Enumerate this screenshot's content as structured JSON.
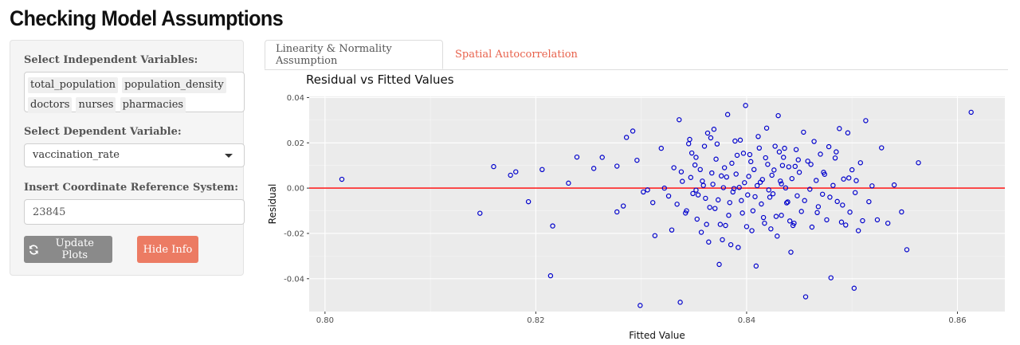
{
  "app": {
    "title": "Checking Model Assumptions"
  },
  "sidebar": {
    "independent_label": "Select Independent Variables:",
    "independent_selected": [
      "total_population",
      "population_density",
      "doctors",
      "nurses",
      "pharmacies"
    ],
    "dependent_label": "Select Dependent Variable:",
    "dependent_value": "vaccination_rate",
    "crs_label": "Insert Coordinate Reference System:",
    "crs_value": "23845",
    "update_button": "Update Plots",
    "update_icon": "refresh-icon",
    "hide_button": "Hide Info"
  },
  "tabs": [
    {
      "label": "Linearity & Normality Assumption",
      "active": true
    },
    {
      "label": "Spatial Autocorrelation",
      "active": false
    }
  ],
  "colors": {
    "accent": "#ec7b63",
    "tab_link": "#e8624c",
    "panel_bg": "#ebebeb",
    "points": "#0000cc",
    "reference_line": "#ff0000",
    "button_gray": "#8a8a8a"
  },
  "chart_data": {
    "type": "scatter",
    "title": "Residual vs Fitted Values",
    "xlabel": "Fitted Value",
    "ylabel": "Residual",
    "xlim": [
      0.7985,
      0.8645
    ],
    "ylim": [
      -0.0545,
      0.0405
    ],
    "xticks": [
      0.8,
      0.82,
      0.84,
      0.86
    ],
    "xtick_labels": [
      "0.80",
      "0.82",
      "0.84",
      "0.86"
    ],
    "yticks": [
      -0.04,
      -0.02,
      0.0,
      0.02,
      0.04
    ],
    "ytick_labels": [
      "-0.04",
      "-0.02",
      "0.00",
      "0.02",
      "0.04"
    ],
    "grid": true,
    "reference_line_y": 0,
    "points": [
      [
        0.8016,
        0.0039
      ],
      [
        0.8147,
        -0.0111
      ],
      [
        0.816,
        0.0095
      ],
      [
        0.8176,
        0.0057
      ],
      [
        0.8181,
        0.0072
      ],
      [
        0.8193,
        -0.006
      ],
      [
        0.8206,
        0.0082
      ],
      [
        0.8214,
        -0.0387
      ],
      [
        0.8216,
        -0.0167
      ],
      [
        0.8231,
        0.0022
      ],
      [
        0.8239,
        0.0137
      ],
      [
        0.8255,
        0.0087
      ],
      [
        0.8263,
        0.0136
      ],
      [
        0.8277,
        -0.0105
      ],
      [
        0.8277,
        0.0097
      ],
      [
        0.8283,
        -0.0079
      ],
      [
        0.8286,
        0.0224
      ],
      [
        0.8292,
        0.0252
      ],
      [
        0.8296,
        0.0123
      ],
      [
        0.8299,
        -0.0518
      ],
      [
        0.8302,
        -0.0017
      ],
      [
        0.8306,
        -0.0008
      ],
      [
        0.8311,
        -0.0064
      ],
      [
        0.8313,
        -0.021
      ],
      [
        0.8319,
        0.0176
      ],
      [
        0.8322,
        0.0
      ],
      [
        0.8326,
        -0.0035
      ],
      [
        0.8329,
        -0.0185
      ],
      [
        0.8331,
        0.009
      ],
      [
        0.8334,
        -0.0071
      ],
      [
        0.8336,
        0.0302
      ],
      [
        0.8337,
        -0.0504
      ],
      [
        0.8339,
        0.003
      ],
      [
        0.8342,
        -0.011
      ],
      [
        0.8345,
        0.0196
      ],
      [
        0.8347,
        0.0047
      ],
      [
        0.8349,
        -0.0024
      ],
      [
        0.8352,
        0.0136
      ],
      [
        0.8353,
        -0.0137
      ],
      [
        0.8356,
        0.0082
      ],
      [
        0.8359,
        0.0012
      ],
      [
        0.8361,
        -0.0045
      ],
      [
        0.8363,
        0.0243
      ],
      [
        0.8364,
        -0.0238
      ],
      [
        0.8367,
        0.0067
      ],
      [
        0.837,
        -0.009
      ],
      [
        0.8372,
        0.0195
      ],
      [
        0.8374,
        -0.0337
      ],
      [
        0.8376,
        0.0054
      ],
      [
        0.8378,
        0.0002
      ],
      [
        0.838,
        -0.0165
      ],
      [
        0.8382,
        0.0325
      ],
      [
        0.8384,
        -0.0064
      ],
      [
        0.8386,
        0.011
      ],
      [
        0.8388,
        -0.0002
      ],
      [
        0.839,
        0.0062
      ],
      [
        0.8392,
        -0.0262
      ],
      [
        0.8394,
        0.0212
      ],
      [
        0.8396,
        -0.011
      ],
      [
        0.8398,
        0.0024
      ],
      [
        0.8399,
        0.0365
      ],
      [
        0.8401,
        -0.003
      ],
      [
        0.8403,
        0.0148
      ],
      [
        0.8405,
        -0.0188
      ],
      [
        0.8407,
        0.0082
      ],
      [
        0.8409,
        -0.0344
      ],
      [
        0.841,
        0.0011
      ],
      [
        0.8412,
        0.0177
      ],
      [
        0.8414,
        -0.007
      ],
      [
        0.8415,
        0.0038
      ],
      [
        0.8417,
        -0.0155
      ],
      [
        0.8419,
        0.0265
      ],
      [
        0.842,
        0.0105
      ],
      [
        0.8422,
        -0.004
      ],
      [
        0.8424,
        0.0057
      ],
      [
        0.8425,
        -0.0025
      ],
      [
        0.8427,
        0.0185
      ],
      [
        0.8429,
        -0.0212
      ],
      [
        0.843,
        0.032
      ],
      [
        0.8432,
        0.0031
      ],
      [
        0.8433,
        -0.012
      ],
      [
        0.8435,
        0.0136
      ],
      [
        0.8437,
        0.0001
      ],
      [
        0.8438,
        -0.0065
      ],
      [
        0.844,
        0.0094
      ],
      [
        0.8442,
        -0.0283
      ],
      [
        0.8443,
        0.0042
      ],
      [
        0.8445,
        -0.0155
      ],
      [
        0.8447,
        0.017
      ],
      [
        0.8448,
        -0.0034
      ],
      [
        0.845,
        0.007
      ],
      [
        0.8452,
        -0.0103
      ],
      [
        0.8454,
        0.0247
      ],
      [
        0.8456,
        -0.048
      ],
      [
        0.8458,
        0.0119
      ],
      [
        0.846,
        -0.0005
      ],
      [
        0.8462,
        -0.0172
      ],
      [
        0.8464,
        0.0206
      ],
      [
        0.8466,
        0.0034
      ],
      [
        0.8468,
        -0.0082
      ],
      [
        0.847,
        0.015
      ],
      [
        0.8472,
        -0.0027
      ],
      [
        0.8474,
        0.0061
      ],
      [
        0.8476,
        -0.014
      ],
      [
        0.8478,
        0.0183
      ],
      [
        0.848,
        -0.0396
      ],
      [
        0.8482,
        0.0012
      ],
      [
        0.8484,
        0.0133
      ],
      [
        0.8486,
        -0.0059
      ],
      [
        0.8488,
        0.0263
      ],
      [
        0.849,
        -0.015
      ],
      [
        0.8492,
        0.004
      ],
      [
        0.8494,
        -0.0163
      ],
      [
        0.8496,
        0.0244
      ],
      [
        0.8498,
        -0.0106
      ],
      [
        0.85,
        0.0081
      ],
      [
        0.8502,
        -0.0442
      ],
      [
        0.8504,
        0.0033
      ],
      [
        0.8506,
        -0.0188
      ],
      [
        0.8508,
        0.0112
      ],
      [
        0.851,
        -0.0144
      ],
      [
        0.8513,
        0.0298
      ],
      [
        0.8516,
        -0.006
      ],
      [
        0.8519,
        0.001
      ],
      [
        0.8524,
        -0.014
      ],
      [
        0.8528,
        0.0178
      ],
      [
        0.8534,
        -0.0155
      ],
      [
        0.854,
        0.0014
      ],
      [
        0.8547,
        -0.0105
      ],
      [
        0.8552,
        -0.0272
      ],
      [
        0.8563,
        0.0112
      ],
      [
        0.8613,
        0.0335
      ],
      [
        0.8352,
        -0.0009
      ],
      [
        0.8358,
        0.0031
      ],
      [
        0.8368,
        0.0017
      ],
      [
        0.8373,
        -0.0052
      ],
      [
        0.8381,
        0.0049
      ],
      [
        0.8387,
        -0.0017
      ],
      [
        0.8393,
        0.0003
      ],
      [
        0.8402,
        0.0052
      ],
      [
        0.8408,
        -0.0038
      ],
      [
        0.8413,
        0.0026
      ],
      [
        0.8421,
        -0.0008
      ],
      [
        0.8426,
        0.008
      ],
      [
        0.8433,
        0.0019
      ],
      [
        0.8439,
        -0.0061
      ],
      [
        0.8446,
        0.0096
      ],
      [
        0.8351,
        0.0102
      ],
      [
        0.8362,
        -0.016
      ],
      [
        0.8371,
        0.0128
      ],
      [
        0.8383,
        -0.012
      ],
      [
        0.8397,
        0.0154
      ],
      [
        0.8406,
        -0.01
      ],
      [
        0.8418,
        0.0134
      ],
      [
        0.8428,
        -0.0125
      ],
      [
        0.8436,
        0.0176
      ],
      [
        0.8444,
        -0.0165
      ],
      [
        0.8346,
        0.0215
      ],
      [
        0.8357,
        -0.0195
      ],
      [
        0.8366,
        0.0222
      ],
      [
        0.8377,
        -0.0228
      ],
      [
        0.8389,
        0.0208
      ],
      [
        0.84,
        -0.017
      ],
      [
        0.8411,
        0.0228
      ],
      [
        0.8423,
        -0.018
      ],
      [
        0.8431,
        0.016
      ],
      [
        0.8441,
        -0.0145
      ],
      [
        0.8449,
        0.0125
      ],
      [
        0.8455,
        -0.0055
      ],
      [
        0.8461,
        0.0105
      ],
      [
        0.8467,
        -0.0108
      ],
      [
        0.8473,
        0.007
      ],
      [
        0.8479,
        -0.004
      ],
      [
        0.8485,
        0.016
      ],
      [
        0.8491,
        -0.0075
      ],
      [
        0.8497,
        0.0045
      ],
      [
        0.8503,
        -0.002
      ],
      [
        0.8338,
        0.0072
      ],
      [
        0.8343,
        -0.01
      ],
      [
        0.8348,
        0.0155
      ],
      [
        0.8354,
        -0.003
      ],
      [
        0.836,
        0.0185
      ],
      [
        0.8365,
        -0.0085
      ],
      [
        0.8369,
        0.026
      ],
      [
        0.8375,
        -0.016
      ],
      [
        0.8379,
        0.009
      ],
      [
        0.8385,
        -0.025
      ],
      [
        0.8391,
        0.0145
      ],
      [
        0.8395,
        -0.0055
      ],
      [
        0.8404,
        0.0117
      ],
      [
        0.8416,
        -0.013
      ],
      [
        0.8434,
        0.01
      ]
    ]
  }
}
